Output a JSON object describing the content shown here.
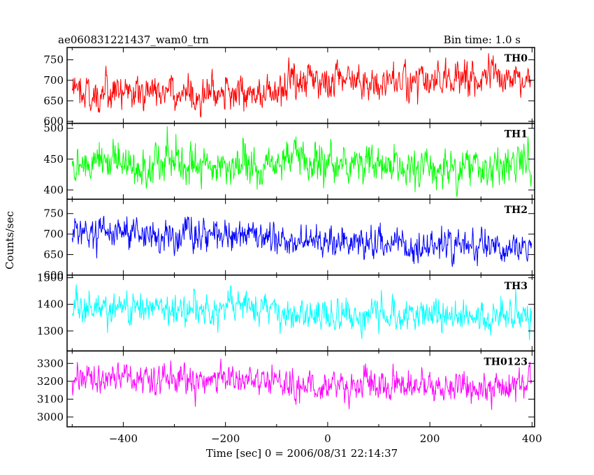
{
  "header": {
    "title": "ae060831221437_wam0_trn",
    "bin_time": "Bin time: 1.0 s"
  },
  "chart_data": {
    "type": "line",
    "xlabel": "Time [sec] 0 = 2006/08/31 22:14:37",
    "ylabel": "Counts/sec",
    "xlim": [
      -510,
      405
    ],
    "x_ticks": [
      -400,
      -200,
      0,
      200,
      400
    ],
    "x_tick_labels": [
      "−400",
      "−200",
      "0",
      "200",
      "400"
    ],
    "x_range": [
      -500,
      399
    ],
    "bin_seconds": 1.0,
    "grid": false,
    "series": [
      {
        "name": "TH0",
        "color": "#ff0000",
        "ylim": [
          595,
          780
        ],
        "y_ticks": [
          600,
          650,
          700,
          750
        ],
        "segments": [
          {
            "x_start": -500,
            "x_end": -300,
            "mean": 675
          },
          {
            "x_start": -300,
            "x_end": -80,
            "mean": 668
          },
          {
            "x_start": -80,
            "x_end": 150,
            "mean": 700
          },
          {
            "x_start": 150,
            "x_end": 399,
            "mean": 705
          }
        ],
        "spread": 35
      },
      {
        "name": "TH1",
        "color": "#00ff00",
        "ylim": [
          385,
          508
        ],
        "y_ticks": [
          400,
          450,
          500
        ],
        "segments": [
          {
            "x_start": -500,
            "x_end": 399,
            "mean": 440
          }
        ],
        "spread": 25
      },
      {
        "name": "TH2",
        "color": "#0000ff",
        "ylim": [
          600,
          785
        ],
        "y_ticks": [
          600,
          650,
          700,
          750
        ],
        "segments": [
          {
            "x_start": -500,
            "x_end": -100,
            "mean": 700
          },
          {
            "x_start": -100,
            "x_end": 150,
            "mean": 680
          },
          {
            "x_start": 150,
            "x_end": 399,
            "mean": 668
          }
        ],
        "spread": 30
      },
      {
        "name": "TH3",
        "color": "#00ffff",
        "ylim": [
          1225,
          1510
        ],
        "y_ticks": [
          1300,
          1400,
          1500
        ],
        "segments": [
          {
            "x_start": -500,
            "x_end": -100,
            "mean": 1390
          },
          {
            "x_start": -100,
            "x_end": 399,
            "mean": 1355
          }
        ],
        "spread": 45
      },
      {
        "name": "TH0123",
        "color": "#ff00ff",
        "ylim": [
          2945,
          3370
        ],
        "y_ticks": [
          3000,
          3100,
          3200,
          3300
        ],
        "segments": [
          {
            "x_start": -500,
            "x_end": -100,
            "mean": 3220
          },
          {
            "x_start": -100,
            "x_end": 399,
            "mean": 3170
          }
        ],
        "spread": 65
      }
    ]
  }
}
